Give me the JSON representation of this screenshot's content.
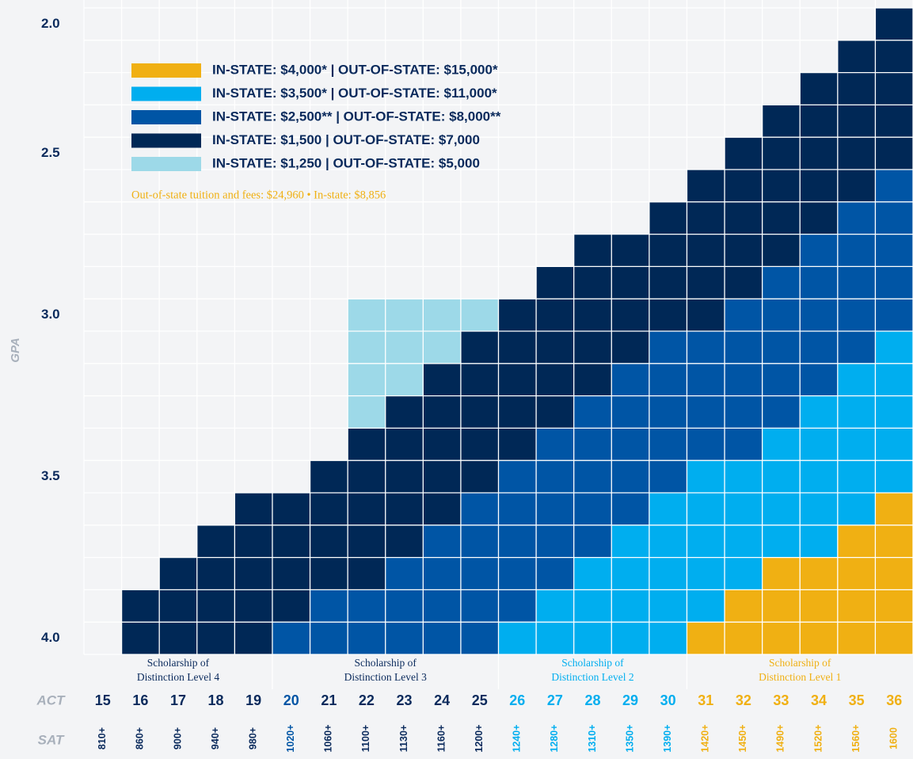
{
  "chart_type_note_free": null,
  "chart_data": {
    "type": "heatmap",
    "legend": [
      {
        "label": "IN-STATE: $4,000* | OUT-OF-STATE: $15,000*",
        "color": "#f0b013"
      },
      {
        "label": "IN-STATE: $3,500* | OUT-OF-STATE: $11,000*",
        "color": "#00aeef"
      },
      {
        "label": "IN-STATE: $2,500** | OUT-OF-STATE: $8,000**",
        "color": "#0055a5"
      },
      {
        "label": "IN-STATE: $1,500 | OUT-OF-STATE: $7,000",
        "color": "#002856"
      },
      {
        "label": "IN-STATE: $1,250 | OUT-OF-STATE: $5,000",
        "color": "#9dd9e8"
      }
    ],
    "note": "Out-of-state tuition and fees: $24,960 • In-state: $8,856",
    "y_axis_label": "GPA",
    "rows": [
      "2.0",
      null,
      null,
      null,
      "2.5",
      null,
      null,
      null,
      null,
      "3.0",
      null,
      null,
      null,
      null,
      "3.5",
      null,
      null,
      null,
      null,
      "4.0"
    ],
    "cells": [
      [
        null,
        null,
        null,
        null,
        null,
        null,
        null,
        null,
        null,
        null,
        null,
        null,
        null,
        null,
        null,
        null,
        null,
        null,
        null,
        null,
        null,
        3
      ],
      [
        null,
        null,
        null,
        null,
        null,
        null,
        null,
        null,
        null,
        null,
        null,
        null,
        null,
        null,
        null,
        null,
        null,
        null,
        null,
        null,
        3,
        3
      ],
      [
        null,
        null,
        null,
        null,
        null,
        null,
        null,
        null,
        null,
        null,
        null,
        null,
        null,
        null,
        null,
        null,
        null,
        null,
        null,
        3,
        3,
        3
      ],
      [
        null,
        null,
        null,
        null,
        null,
        null,
        null,
        null,
        null,
        null,
        null,
        null,
        null,
        null,
        null,
        null,
        null,
        null,
        3,
        3,
        3,
        3
      ],
      [
        null,
        null,
        null,
        null,
        null,
        null,
        null,
        null,
        null,
        null,
        null,
        null,
        null,
        null,
        null,
        null,
        null,
        3,
        3,
        3,
        3,
        3
      ],
      [
        null,
        null,
        null,
        null,
        null,
        null,
        null,
        null,
        null,
        null,
        null,
        null,
        null,
        null,
        null,
        null,
        3,
        3,
        3,
        3,
        3,
        2
      ],
      [
        null,
        null,
        null,
        null,
        null,
        null,
        null,
        null,
        null,
        null,
        null,
        null,
        null,
        null,
        null,
        3,
        3,
        3,
        3,
        3,
        2,
        2
      ],
      [
        null,
        null,
        null,
        null,
        null,
        null,
        null,
        null,
        null,
        null,
        null,
        null,
        null,
        3,
        3,
        3,
        3,
        3,
        3,
        2,
        2,
        2
      ],
      [
        null,
        null,
        null,
        null,
        null,
        null,
        null,
        null,
        null,
        null,
        null,
        null,
        3,
        3,
        3,
        3,
        3,
        3,
        2,
        2,
        2,
        2
      ],
      [
        null,
        null,
        null,
        null,
        null,
        null,
        null,
        4,
        4,
        4,
        4,
        3,
        3,
        3,
        3,
        3,
        3,
        2,
        2,
        2,
        2,
        2
      ],
      [
        null,
        null,
        null,
        null,
        null,
        null,
        null,
        4,
        4,
        4,
        3,
        3,
        3,
        3,
        3,
        2,
        2,
        2,
        2,
        2,
        2,
        1
      ],
      [
        null,
        null,
        null,
        null,
        null,
        null,
        null,
        4,
        4,
        3,
        3,
        3,
        3,
        3,
        2,
        2,
        2,
        2,
        2,
        2,
        1,
        1
      ],
      [
        null,
        null,
        null,
        null,
        null,
        null,
        null,
        4,
        3,
        3,
        3,
        3,
        3,
        2,
        2,
        2,
        2,
        2,
        2,
        1,
        1,
        1
      ],
      [
        null,
        null,
        null,
        null,
        null,
        null,
        null,
        3,
        3,
        3,
        3,
        3,
        2,
        2,
        2,
        2,
        2,
        2,
        1,
        1,
        1,
        1
      ],
      [
        null,
        null,
        null,
        null,
        null,
        null,
        3,
        3,
        3,
        3,
        3,
        2,
        2,
        2,
        2,
        2,
        1,
        1,
        1,
        1,
        1,
        1
      ],
      [
        null,
        null,
        null,
        null,
        3,
        3,
        3,
        3,
        3,
        3,
        2,
        2,
        2,
        2,
        2,
        1,
        1,
        1,
        1,
        1,
        1,
        0
      ],
      [
        null,
        null,
        null,
        3,
        3,
        3,
        3,
        3,
        3,
        2,
        2,
        2,
        2,
        2,
        1,
        1,
        1,
        1,
        1,
        1,
        0,
        0
      ],
      [
        null,
        null,
        3,
        3,
        3,
        3,
        3,
        3,
        2,
        2,
        2,
        2,
        2,
        1,
        1,
        1,
        1,
        1,
        0,
        0,
        0,
        0
      ],
      [
        null,
        3,
        3,
        3,
        3,
        3,
        2,
        2,
        2,
        2,
        2,
        2,
        1,
        1,
        1,
        1,
        1,
        0,
        0,
        0,
        0,
        0
      ],
      [
        null,
        3,
        3,
        3,
        3,
        2,
        2,
        2,
        2,
        2,
        2,
        1,
        1,
        1,
        1,
        1,
        0,
        0,
        0,
        0,
        0,
        0
      ]
    ],
    "act_label": "ACT",
    "sat_label": "SAT",
    "columns": [
      {
        "act": "15",
        "sat": "810+",
        "color": "#0a2a5c"
      },
      {
        "act": "16",
        "sat": "860+",
        "color": "#0a2a5c"
      },
      {
        "act": "17",
        "sat": "900+",
        "color": "#0a2a5c"
      },
      {
        "act": "18",
        "sat": "940+",
        "color": "#0a2a5c"
      },
      {
        "act": "19",
        "sat": "980+",
        "color": "#0a2a5c"
      },
      {
        "act": "20",
        "sat": "1020+",
        "color": "#0055a5"
      },
      {
        "act": "21",
        "sat": "1060+",
        "color": "#0a2a5c"
      },
      {
        "act": "22",
        "sat": "1100+",
        "color": "#0a2a5c"
      },
      {
        "act": "23",
        "sat": "1130+",
        "color": "#0a2a5c"
      },
      {
        "act": "24",
        "sat": "1160+",
        "color": "#0a2a5c"
      },
      {
        "act": "25",
        "sat": "1200+",
        "color": "#0a2a5c"
      },
      {
        "act": "26",
        "sat": "1240+",
        "color": "#00aeef"
      },
      {
        "act": "27",
        "sat": "1280+",
        "color": "#00aeef"
      },
      {
        "act": "28",
        "sat": "1310+",
        "color": "#00aeef"
      },
      {
        "act": "29",
        "sat": "1350+",
        "color": "#00aeef"
      },
      {
        "act": "30",
        "sat": "1390+",
        "color": "#00aeef"
      },
      {
        "act": "31",
        "sat": "1420+",
        "color": "#f0b013"
      },
      {
        "act": "32",
        "sat": "1450+",
        "color": "#f0b013"
      },
      {
        "act": "33",
        "sat": "1490+",
        "color": "#f0b013"
      },
      {
        "act": "34",
        "sat": "1520+",
        "color": "#f0b013"
      },
      {
        "act": "35",
        "sat": "1560+",
        "color": "#f0b013"
      },
      {
        "act": "36",
        "sat": "1600",
        "color": "#f0b013"
      }
    ],
    "groups": [
      {
        "lines": [
          "Scholarship of",
          "Distinction Level 4"
        ],
        "span": 5,
        "color": "#0a2a5c"
      },
      {
        "lines": [
          "Scholarship of",
          "Distinction Level 3"
        ],
        "span": 6,
        "color": "#0a2a5c"
      },
      {
        "lines": [
          "Scholarship of",
          "Distinction Level 2"
        ],
        "span": 5,
        "color": "#00aeef"
      },
      {
        "lines": [
          "Scholarship of",
          "Distinction Level 1"
        ],
        "span": 6,
        "color": "#f0b013"
      }
    ]
  }
}
